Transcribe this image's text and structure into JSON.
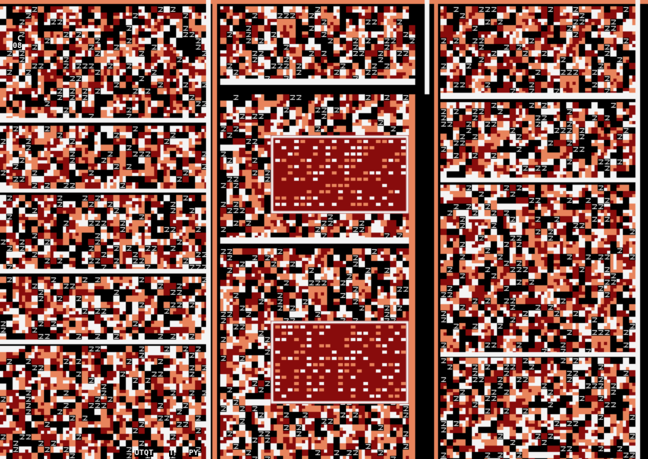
{
  "palette": {
    "background": "#000000",
    "salmon": "#e8845c",
    "dark_red": "#880c0c",
    "white": "#f4f4f4"
  },
  "visible_text": {
    "counter_letter": "C",
    "counter_value": "08",
    "bottom_strings": [
      "UTQT",
      "T",
      "PY"
    ]
  }
}
